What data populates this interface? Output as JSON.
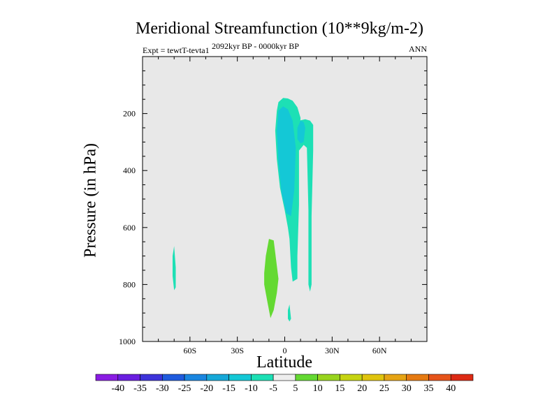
{
  "chart_data": {
    "type": "heatmap",
    "title": "Meridional Streamfunction (10**9kg/m-2)",
    "left_subtitle": "Expt = tewtT-tevta1",
    "center_subtitle": "2092kyr BP - 0000kyr BP",
    "right_subtitle": "ANN",
    "xlabel": "Latitude",
    "ylabel": "Pressure (in hPa)",
    "xlim": [
      -90,
      90
    ],
    "ylim": [
      1000,
      0
    ],
    "background_color": "#e8e8e8",
    "x_ticks": [
      {
        "value": -60,
        "label": "60S"
      },
      {
        "value": -30,
        "label": "30S"
      },
      {
        "value": 0,
        "label": "0"
      },
      {
        "value": 30,
        "label": "30N"
      },
      {
        "value": 60,
        "label": "60N"
      }
    ],
    "y_ticks": [
      {
        "value": 200,
        "label": "200"
      },
      {
        "value": 400,
        "label": "400"
      },
      {
        "value": 600,
        "label": "600"
      },
      {
        "value": 800,
        "label": "800"
      },
      {
        "value": 1000,
        "label": "1000"
      }
    ],
    "regions": [
      {
        "name": "upper-cell-outer",
        "level": -5,
        "color": "#1de0b5",
        "points": [
          [
            -4,
            160
          ],
          [
            -1,
            145
          ],
          [
            2,
            147
          ],
          [
            5,
            155
          ],
          [
            8,
            178
          ],
          [
            10,
            215
          ],
          [
            9,
            290
          ],
          [
            9,
            520
          ],
          [
            8,
            700
          ],
          [
            8,
            780
          ],
          [
            5,
            790
          ],
          [
            4,
            740
          ],
          [
            3,
            640
          ],
          [
            2,
            600
          ],
          [
            0,
            540
          ],
          [
            -3,
            460
          ],
          [
            -5,
            360
          ],
          [
            -6,
            260
          ],
          [
            -5,
            190
          ]
        ]
      },
      {
        "name": "upper-cell-core",
        "level": -10,
        "color": "#14c8d6",
        "points": [
          [
            -4,
            190
          ],
          [
            -1,
            175
          ],
          [
            2,
            185
          ],
          [
            5,
            225
          ],
          [
            7,
            320
          ],
          [
            6,
            470
          ],
          [
            4,
            560
          ],
          [
            1,
            550
          ],
          [
            -2,
            480
          ],
          [
            -4,
            370
          ],
          [
            -5,
            260
          ]
        ]
      },
      {
        "name": "ne-lobe",
        "level": -5,
        "color": "#1de0b5",
        "points": [
          [
            7,
            240
          ],
          [
            9,
            225
          ],
          [
            13,
            220
          ],
          [
            16,
            225
          ],
          [
            18,
            240
          ],
          [
            18,
            330
          ],
          [
            17,
            560
          ],
          [
            17,
            700
          ],
          [
            17,
            800
          ],
          [
            16,
            825
          ],
          [
            15,
            800
          ],
          [
            15,
            700
          ],
          [
            15,
            540
          ],
          [
            14,
            320
          ],
          [
            12,
            310
          ],
          [
            9,
            330
          ],
          [
            8,
            280
          ]
        ]
      },
      {
        "name": "ne-lobe-core",
        "level": -10,
        "color": "#14c8d6",
        "points": [
          [
            8,
            250
          ],
          [
            10,
            225
          ],
          [
            12,
            230
          ],
          [
            13,
            250
          ],
          [
            12,
            300
          ],
          [
            10,
            305
          ],
          [
            8,
            290
          ]
        ]
      },
      {
        "name": "south-sliver",
        "level": -5,
        "color": "#1de0b5",
        "points": [
          [
            -70,
            665
          ],
          [
            -69,
            740
          ],
          [
            -69,
            810
          ],
          [
            -70,
            820
          ],
          [
            -71,
            770
          ],
          [
            -71,
            700
          ]
        ]
      },
      {
        "name": "lower-positive-cell",
        "level": 5,
        "color": "#64d932",
        "points": [
          [
            -10,
            640
          ],
          [
            -7,
            645
          ],
          [
            -4,
            780
          ],
          [
            -5,
            830
          ],
          [
            -7,
            890
          ],
          [
            -9,
            918
          ],
          [
            -11,
            860
          ],
          [
            -13,
            800
          ],
          [
            -13,
            760
          ],
          [
            -12,
            700
          ]
        ]
      },
      {
        "name": "tiny-blob",
        "level": -5,
        "color": "#1de0b5",
        "points": [
          [
            3,
            870
          ],
          [
            4,
            920
          ],
          [
            3,
            930
          ],
          [
            2,
            920
          ],
          [
            2,
            890
          ]
        ]
      }
    ],
    "colorbar": {
      "labels": [
        "-40",
        "-35",
        "-30",
        "-25",
        "-20",
        "-15",
        "-10",
        "-5",
        "5",
        "10",
        "15",
        "20",
        "25",
        "30",
        "35",
        "40"
      ],
      "colors": [
        "#8a1ce3",
        "#6a1ee0",
        "#3d33da",
        "#1f5bde",
        "#1a86e0",
        "#16a8d8",
        "#14c8d6",
        "#1de0b5",
        "#eeeeee",
        "#64d932",
        "#98d41e",
        "#c6d412",
        "#e0c40e",
        "#e6a414",
        "#e67a12",
        "#e6541a",
        "#dd2a14"
      ]
    }
  }
}
